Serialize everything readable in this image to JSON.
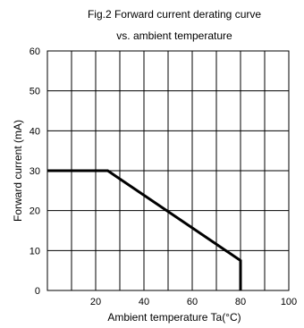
{
  "chart_data": {
    "type": "line",
    "title": "Fig.2  Forward current derating curve",
    "subtitle": "vs. ambient temperature",
    "xlabel": "Ambient temperature Ta(°C)",
    "ylabel": "Forward current (mA)",
    "xlim": [
      0,
      100
    ],
    "ylim": [
      0,
      60
    ],
    "xticks": [
      20,
      40,
      60,
      80,
      100
    ],
    "yticks": [
      0,
      10,
      20,
      30,
      40,
      50,
      60
    ],
    "xtick_labels": [
      "20",
      "40",
      "60",
      "80",
      "100"
    ],
    "ytick_labels": [
      "0",
      "10",
      "20",
      "30",
      "40",
      "50",
      "60"
    ],
    "x_grid_step": 10,
    "y_grid_step": 10,
    "grid": true,
    "series": [
      {
        "x": [
          0,
          25,
          80,
          80
        ],
        "y": [
          30,
          30,
          7.5,
          0
        ]
      }
    ]
  }
}
